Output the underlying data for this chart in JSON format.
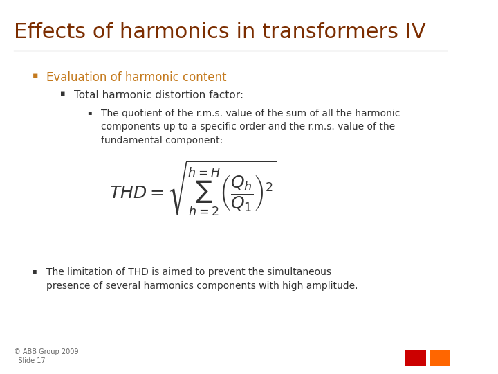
{
  "title": "Effects of harmonics in transformers IV",
  "title_color": "#7B2D00",
  "title_fontsize": 22,
  "bullet1": "Evaluation of harmonic content",
  "bullet1_color": "#C47A1E",
  "bullet1_fontsize": 12,
  "bullet2": "Total harmonic distortion factor:",
  "bullet2_color": "#333333",
  "bullet2_fontsize": 11,
  "bullet3": "The quotient of the r.m.s. value of the sum of all the harmonic\ncomponents up to a specific order and the r.m.s. value of the\nfundamental component:",
  "bullet3_color": "#333333",
  "bullet3_fontsize": 10,
  "formula_label": "THD = ",
  "bullet4": "The limitation of THD is aimed to prevent the simultaneous\npresence of several harmonics components with high amplitude.",
  "bullet4_color": "#333333",
  "bullet4_fontsize": 10,
  "footer": "© ABB Group 2009\n| Slide 17",
  "footer_color": "#666666",
  "footer_fontsize": 7,
  "background_color": "#FFFFFF",
  "line_color": "#CCCCCC",
  "abb_red": "#CC0000",
  "abb_orange": "#FF6600"
}
